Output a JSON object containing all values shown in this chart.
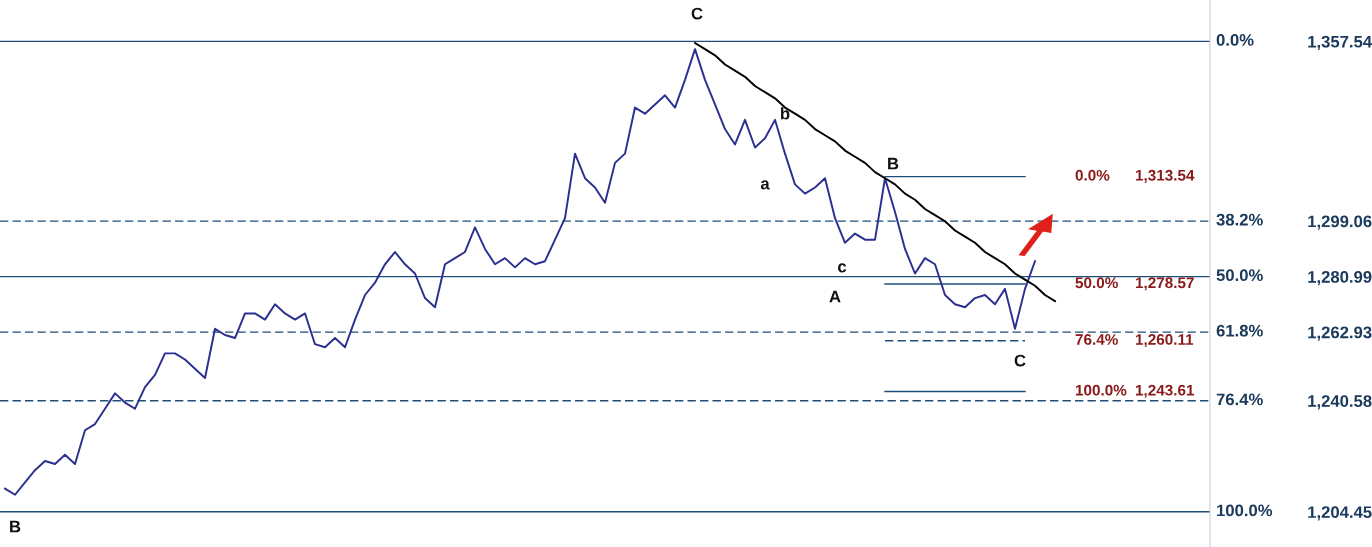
{
  "chart_data": {
    "type": "line",
    "categories": [
      null,
      null,
      null,
      null,
      null,
      null,
      null,
      null,
      null,
      null,
      null,
      null,
      null,
      null,
      null,
      null,
      null,
      null,
      null,
      null,
      null,
      null,
      null,
      null,
      null,
      null,
      null,
      null,
      null,
      null,
      null,
      null,
      null,
      null,
      null,
      null,
      null,
      null,
      null,
      null,
      null,
      null,
      null,
      null,
      null,
      null,
      null,
      null,
      null,
      null,
      null,
      null,
      null,
      null,
      null,
      null,
      null,
      null,
      null,
      null,
      null,
      null,
      null,
      null,
      null,
      null,
      null,
      null,
      null,
      null,
      null,
      null,
      null,
      null,
      null,
      null,
      null,
      null,
      null,
      null,
      null,
      null,
      null,
      null,
      null,
      null,
      null,
      null,
      null,
      null,
      null,
      null,
      null,
      null,
      null,
      null,
      null,
      null,
      null,
      null,
      null,
      null,
      null,
      null,
      null,
      null,
      null,
      null,
      null,
      null,
      null,
      null,
      null,
      null,
      null,
      null,
      null,
      null,
      null,
      null,
      null
    ],
    "series": [
      {
        "color": "#2b2f8f",
        "values": [
          1212,
          1210,
          1214,
          1218,
          1221,
          1220,
          1223,
          1220,
          1231,
          1233,
          1238,
          1243,
          1240,
          1238,
          1245,
          1249,
          1256,
          1256,
          1254,
          1251,
          1248,
          1264,
          1262,
          1261,
          1269,
          1269,
          1267,
          1272,
          1269,
          1267,
          1269,
          1259,
          1258,
          1261,
          1258,
          1267,
          1275,
          1279,
          1285,
          1289,
          1285,
          1282,
          1274,
          1271,
          1285,
          1287,
          1289,
          1297,
          1290,
          1285,
          1287,
          1284,
          1287,
          1285,
          1286,
          1293,
          1300,
          1321,
          1313,
          1310,
          1305,
          1318,
          1321,
          1336,
          1334,
          1337,
          1340,
          1336,
          1345,
          1355,
          1345,
          1337,
          1329,
          1324,
          1332,
          1323,
          1326,
          1332,
          1321,
          1311,
          1308,
          1310,
          1313,
          1300,
          1292,
          1295,
          1293,
          1293,
          1313,
          1302,
          1290,
          1282,
          1287,
          1285,
          1275,
          1272,
          1271,
          1274,
          1275,
          1272,
          1277,
          1264,
          1277,
          1286,
          null,
          null,
          null,
          null,
          null,
          null,
          null,
          null,
          null,
          null,
          null,
          null,
          null,
          null,
          null,
          null,
          null
        ]
      },
      {
        "color": "#000000",
        "values": [
          null,
          null,
          null,
          null,
          null,
          null,
          null,
          null,
          null,
          null,
          null,
          null,
          null,
          null,
          null,
          null,
          null,
          null,
          null,
          null,
          null,
          null,
          null,
          null,
          null,
          null,
          null,
          null,
          null,
          null,
          null,
          null,
          null,
          null,
          null,
          null,
          null,
          null,
          null,
          null,
          null,
          null,
          null,
          null,
          null,
          null,
          null,
          null,
          null,
          null,
          null,
          null,
          null,
          null,
          null,
          null,
          null,
          null,
          null,
          null,
          null,
          null,
          null,
          null,
          null,
          null,
          null,
          null,
          null,
          1357,
          1355,
          1353,
          1350,
          1348,
          1346,
          1343,
          1341,
          1339,
          1336,
          1334,
          1332,
          1329,
          1327,
          1325,
          1322,
          1320,
          1318,
          1315,
          1313,
          1311,
          1308,
          1306,
          1303,
          1301,
          1299,
          1296,
          1294,
          1292,
          1289,
          1287,
          1285,
          1282,
          1280,
          1278,
          1275,
          1273,
          null,
          null,
          null,
          null,
          null,
          null,
          null,
          null,
          null,
          null,
          null,
          null,
          null,
          null,
          null
        ]
      },
      {
        "name": "0.0%",
        "color": "#1f4e79",
        "line_style": "solid",
        "values": [
          null,
          null,
          null,
          null,
          null,
          null,
          null,
          null,
          null,
          null,
          null,
          null,
          null,
          null,
          null,
          null,
          null,
          null,
          null,
          null,
          null,
          null,
          null,
          null,
          null,
          null,
          null,
          null,
          null,
          null,
          null,
          null,
          null,
          null,
          null,
          null,
          null,
          null,
          null,
          null,
          null,
          null,
          null,
          null,
          null,
          null,
          null,
          null,
          null,
          null,
          null,
          null,
          null,
          null,
          null,
          null,
          null,
          null,
          null,
          null,
          null,
          null,
          null,
          null,
          null,
          null,
          null,
          null,
          null,
          null,
          null,
          null,
          null,
          null,
          null,
          null,
          null,
          null,
          null,
          null,
          null,
          null,
          null,
          null,
          null,
          null,
          null,
          null,
          1313.54,
          1313.54,
          1313.54,
          1313.54,
          1313.54,
          1313.54,
          1313.54,
          1313.54,
          1313.54,
          1313.54,
          1313.54,
          1313.54,
          1313.54,
          1313.54,
          1313.54,
          null,
          null,
          null,
          null,
          null,
          null,
          null,
          null,
          null,
          null,
          null,
          null,
          null,
          null,
          null,
          null,
          null,
          null
        ]
      },
      {
        "name": "50.0%",
        "color": "#1f4e79",
        "line_style": "solid",
        "values": [
          null,
          null,
          null,
          null,
          null,
          null,
          null,
          null,
          null,
          null,
          null,
          null,
          null,
          null,
          null,
          null,
          null,
          null,
          null,
          null,
          null,
          null,
          null,
          null,
          null,
          null,
          null,
          null,
          null,
          null,
          null,
          null,
          null,
          null,
          null,
          null,
          null,
          null,
          null,
          null,
          null,
          null,
          null,
          null,
          null,
          null,
          null,
          null,
          null,
          null,
          null,
          null,
          null,
          null,
          null,
          null,
          null,
          null,
          null,
          null,
          null,
          null,
          null,
          null,
          null,
          null,
          null,
          null,
          null,
          null,
          null,
          null,
          null,
          null,
          null,
          null,
          null,
          null,
          null,
          null,
          null,
          null,
          null,
          null,
          null,
          null,
          null,
          null,
          1278.57,
          1278.57,
          1278.57,
          1278.57,
          1278.57,
          1278.57,
          1278.57,
          1278.57,
          1278.57,
          1278.57,
          1278.57,
          1278.57,
          1278.57,
          1278.57,
          1278.57,
          null,
          null,
          null,
          null,
          null,
          null,
          null,
          null,
          null,
          null,
          null,
          null,
          null,
          null,
          null,
          null,
          null,
          null
        ]
      },
      {
        "name": "76.4%",
        "color": "#1f4e79",
        "line_style": "dashed",
        "values": [
          null,
          null,
          null,
          null,
          null,
          null,
          null,
          null,
          null,
          null,
          null,
          null,
          null,
          null,
          null,
          null,
          null,
          null,
          null,
          null,
          null,
          null,
          null,
          null,
          null,
          null,
          null,
          null,
          null,
          null,
          null,
          null,
          null,
          null,
          null,
          null,
          null,
          null,
          null,
          null,
          null,
          null,
          null,
          null,
          null,
          null,
          null,
          null,
          null,
          null,
          null,
          null,
          null,
          null,
          null,
          null,
          null,
          null,
          null,
          null,
          null,
          null,
          null,
          null,
          null,
          null,
          null,
          null,
          null,
          null,
          null,
          null,
          null,
          null,
          null,
          null,
          null,
          null,
          null,
          null,
          null,
          null,
          null,
          null,
          null,
          null,
          null,
          null,
          1260.11,
          1260.11,
          1260.11,
          1260.11,
          1260.11,
          1260.11,
          1260.11,
          1260.11,
          1260.11,
          1260.11,
          1260.11,
          1260.11,
          1260.11,
          1260.11,
          1260.11,
          null,
          null,
          null,
          null,
          null,
          null,
          null,
          null,
          null,
          null,
          null,
          null,
          null,
          null,
          null,
          null,
          null,
          null
        ]
      },
      {
        "name": "100.0%",
        "color": "#1f4e79",
        "line_style": "solid",
        "values": [
          null,
          null,
          null,
          null,
          null,
          null,
          null,
          null,
          null,
          null,
          null,
          null,
          null,
          null,
          null,
          null,
          null,
          null,
          null,
          null,
          null,
          null,
          null,
          null,
          null,
          null,
          null,
          null,
          null,
          null,
          null,
          null,
          null,
          null,
          null,
          null,
          null,
          null,
          null,
          null,
          null,
          null,
          null,
          null,
          null,
          null,
          null,
          null,
          null,
          null,
          null,
          null,
          null,
          null,
          null,
          null,
          null,
          null,
          null,
          null,
          null,
          null,
          null,
          null,
          null,
          null,
          null,
          null,
          null,
          null,
          null,
          null,
          null,
          null,
          null,
          null,
          null,
          null,
          null,
          null,
          null,
          null,
          null,
          null,
          null,
          null,
          null,
          null,
          1243.61,
          1243.61,
          1243.61,
          1243.61,
          1243.61,
          1243.61,
          1243.61,
          1243.61,
          1243.61,
          1243.61,
          1243.61,
          1243.61,
          1243.61,
          1243.61,
          1243.61,
          null,
          null,
          null,
          null,
          null,
          null,
          null,
          null,
          null,
          null,
          null,
          null,
          null,
          null,
          null,
          null,
          null,
          null
        ]
      }
    ],
    "ylim": [
      1193,
      1371
    ],
    "yticks": [
      {
        "value": 1357.54,
        "label": "1,357.54"
      },
      {
        "value": 1299.06,
        "label": "1,299.06"
      },
      {
        "value": 1280.99,
        "label": "1,280.99"
      },
      {
        "value": 1262.93,
        "label": "1,262.93"
      },
      {
        "value": 1240.58,
        "label": "1,240.58"
      },
      {
        "value": 1204.45,
        "label": "1,204.45"
      }
    ],
    "tick_labels": "y",
    "grid": false,
    "legend": false,
    "ref_lines": [
      {
        "axis": "y",
        "value": 1357.54,
        "color": "#1f4e79",
        "line_style": "solid"
      },
      {
        "axis": "y",
        "value": 1299.06,
        "color": "#1f4e79",
        "line_style": "dashed"
      },
      {
        "axis": "y",
        "value": 1280.99,
        "color": "#1f4e79",
        "line_style": "solid"
      },
      {
        "axis": "y",
        "value": 1262.93,
        "color": "#1f4e79",
        "line_style": "dashed"
      },
      {
        "axis": "y",
        "value": 1240.58,
        "color": "#1f4e79",
        "line_style": "dashed"
      },
      {
        "axis": "y",
        "value": 1204.45,
        "color": "#1f4e79",
        "line_style": "solid"
      }
    ],
    "annotations": [
      "C",
      "b",
      "a",
      "B",
      "c",
      "A",
      "C",
      "B",
      "0.0%",
      "38.2%",
      "50.0%",
      "61.8%",
      "76.4%",
      "100.0%",
      "1,313.54",
      "1,278.57",
      "1,260.11",
      "1,243.61"
    ]
  }
}
